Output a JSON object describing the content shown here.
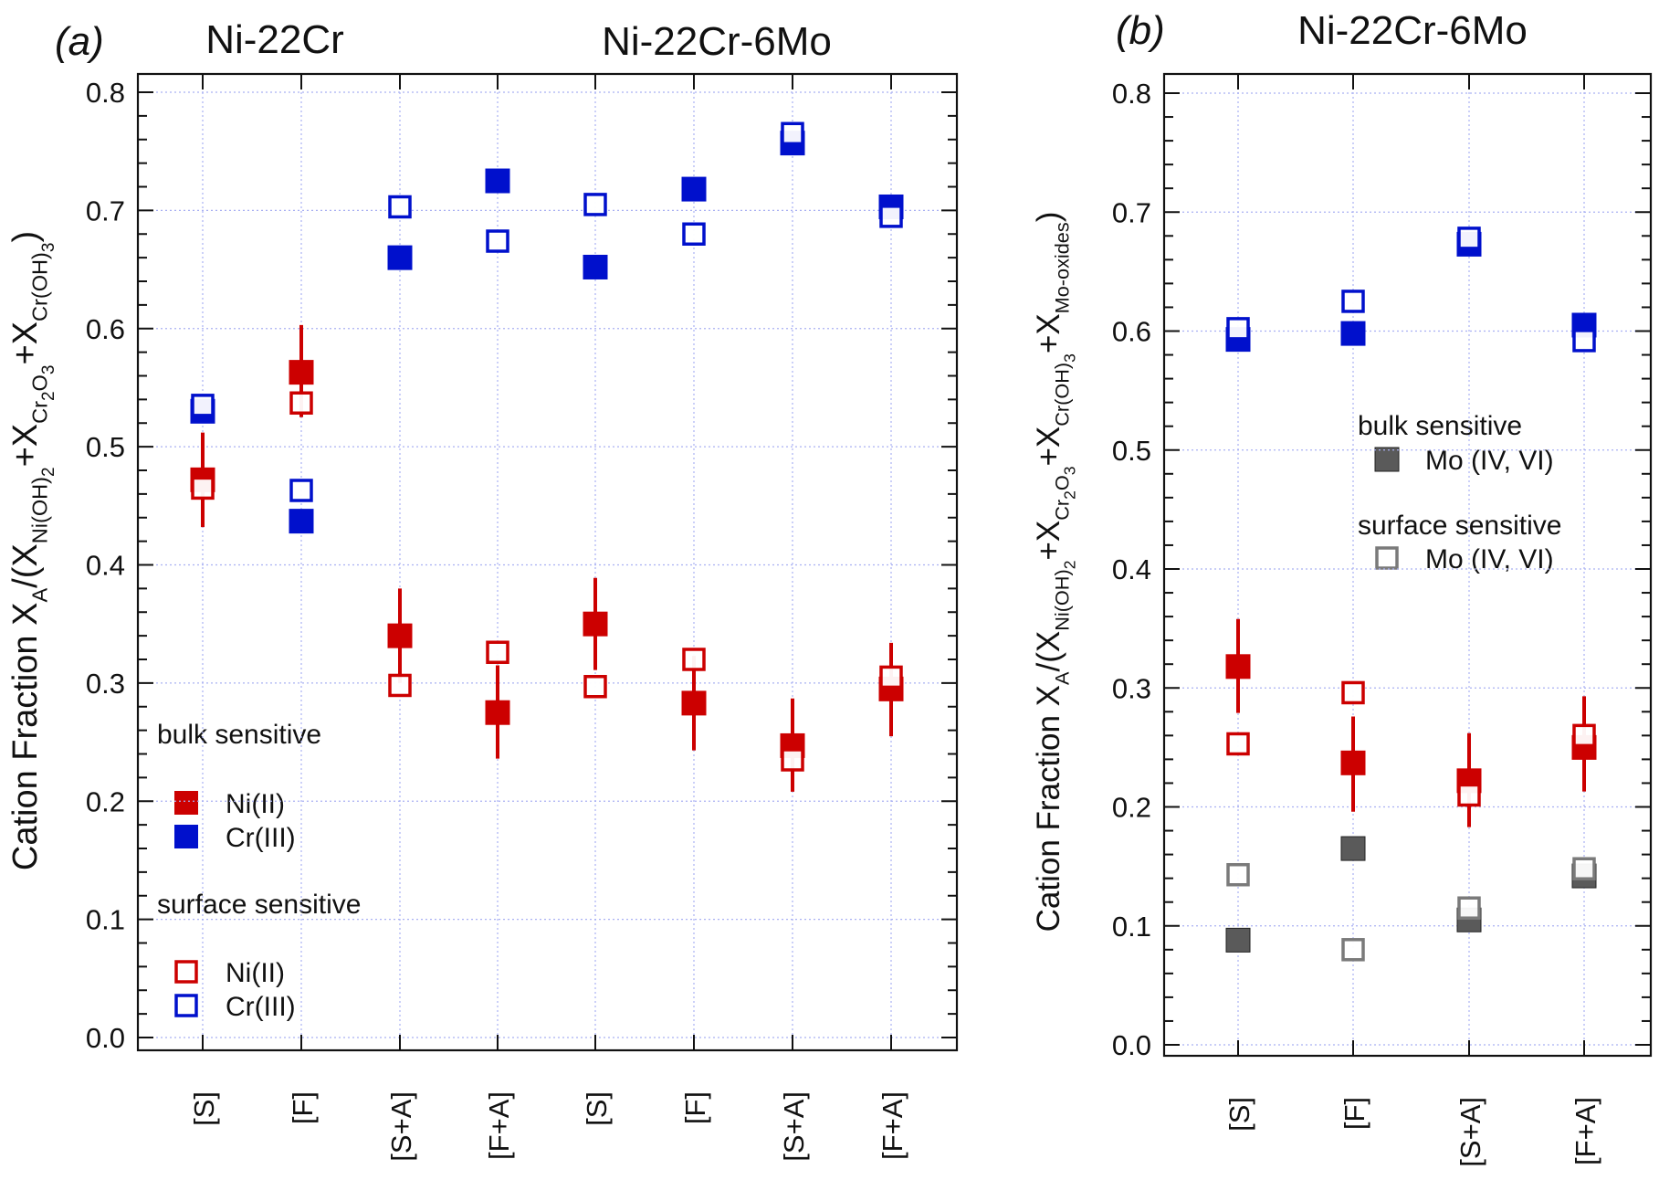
{
  "colors": {
    "ni": "#cc0000",
    "cr": "#0010cc",
    "mo_bulk": "#5a5a5a",
    "mo_surface": "#7a7a7a",
    "grid": "#a9b0f2"
  },
  "chart_data": [
    {
      "panel_label": "(a)",
      "type": "scatter",
      "group_labels": [
        "Ni-22Cr",
        "Ni-22Cr-6Mo"
      ],
      "ylabel_segments": [
        {
          "t": "Cation Fraction X",
          "lvl": 0
        },
        {
          "t": "A",
          "lvl": 1
        },
        {
          "t": "/(X",
          "lvl": 0
        },
        {
          "t": "Ni(OH)",
          "lvl": 1
        },
        {
          "t": "2",
          "lvl": 2
        },
        {
          "t": "+X",
          "lvl": 0
        },
        {
          "t": "Cr",
          "lvl": 1
        },
        {
          "t": "2",
          "lvl": 2
        },
        {
          "t": "O",
          "lvl": 1
        },
        {
          "t": "3",
          "lvl": 2
        },
        {
          "t": "+X",
          "lvl": 0
        },
        {
          "t": "Cr(OH)",
          "lvl": 1
        },
        {
          "t": "3",
          "lvl": 2
        },
        {
          "t": ")",
          "lvl": 0
        }
      ],
      "categories": [
        "[S]",
        "[F]",
        "[S+A]",
        "[F+A]",
        "[S]",
        "[F]",
        "[S+A]",
        "[F+A]"
      ],
      "ylim": [
        0,
        0.8
      ],
      "yticks": [
        "0.0",
        "0.1",
        "0.2",
        "0.3",
        "0.4",
        "0.5",
        "0.6",
        "0.7",
        "0.8"
      ],
      "grid": true,
      "series": [
        {
          "name": "Cr(III)",
          "group": "bulk sensitive",
          "color": "cr",
          "filled": true,
          "values": [
            0.53,
            0.437,
            0.66,
            0.725,
            0.652,
            0.718,
            0.757,
            0.703
          ]
        },
        {
          "name": "Cr(III)",
          "group": "surface sensitive",
          "color": "cr",
          "filled": false,
          "values": [
            0.535,
            0.463,
            0.703,
            0.674,
            0.705,
            0.68,
            0.765,
            0.695
          ]
        },
        {
          "name": "Ni(II)",
          "group": "bulk sensitive",
          "color": "ni",
          "filled": true,
          "values": [
            0.472,
            0.563,
            0.34,
            0.275,
            0.35,
            0.283,
            0.247,
            0.295
          ],
          "err_low": [
            0.432,
            0.525,
            0.3,
            0.236,
            0.311,
            0.243,
            0.208,
            0.255
          ],
          "err_high": [
            0.512,
            0.603,
            0.38,
            0.315,
            0.389,
            0.323,
            0.287,
            0.334
          ]
        },
        {
          "name": "Ni(II)",
          "group": "surface sensitive",
          "color": "ni",
          "filled": false,
          "values": [
            0.465,
            0.537,
            0.298,
            0.326,
            0.297,
            0.32,
            0.235,
            0.305
          ]
        }
      ],
      "legend": {
        "placement": "bottom-left",
        "bulk_title": "bulk sensitive",
        "surface_title": "surface sensitive",
        "bulk_items": [
          "Ni(II)",
          "Cr(III)"
        ],
        "surface_items": [
          "Ni(II)",
          "Cr(III)"
        ]
      }
    },
    {
      "panel_label": "(b)",
      "type": "scatter",
      "group_labels": [
        "Ni-22Cr-6Mo"
      ],
      "ylabel_segments": [
        {
          "t": "Cation Fraction X",
          "lvl": 0
        },
        {
          "t": "A",
          "lvl": 1
        },
        {
          "t": "/(X",
          "lvl": 0
        },
        {
          "t": "Ni(OH)",
          "lvl": 1
        },
        {
          "t": "2",
          "lvl": 2
        },
        {
          "t": "+X",
          "lvl": 0
        },
        {
          "t": "Cr",
          "lvl": 1
        },
        {
          "t": "2",
          "lvl": 2
        },
        {
          "t": "O",
          "lvl": 1
        },
        {
          "t": "3",
          "lvl": 2
        },
        {
          "t": "+X",
          "lvl": 0
        },
        {
          "t": "Cr(OH)",
          "lvl": 1
        },
        {
          "t": "3",
          "lvl": 2
        },
        {
          "t": "+X",
          "lvl": 0
        },
        {
          "t": "Mo-oxides",
          "lvl": 1
        },
        {
          "t": ")",
          "lvl": 0
        }
      ],
      "categories": [
        "[S]",
        "[F]",
        "[S+A]",
        "[F+A]"
      ],
      "ylim": [
        0,
        0.8
      ],
      "yticks": [
        "0.0",
        "0.1",
        "0.2",
        "0.3",
        "0.4",
        "0.5",
        "0.6",
        "0.7",
        "0.8"
      ],
      "grid": true,
      "series": [
        {
          "name": "Cr(III)",
          "group": "bulk sensitive",
          "color": "cr",
          "filled": true,
          "values": [
            0.593,
            0.598,
            0.673,
            0.605
          ]
        },
        {
          "name": "Cr(III)",
          "group": "surface sensitive",
          "color": "cr",
          "filled": false,
          "values": [
            0.602,
            0.625,
            0.678,
            0.592
          ]
        },
        {
          "name": "Ni(II)",
          "group": "bulk sensitive",
          "color": "ni",
          "filled": true,
          "values": [
            0.318,
            0.237,
            0.222,
            0.25
          ],
          "err_low": [
            0.279,
            0.196,
            0.183,
            0.213
          ],
          "err_high": [
            0.358,
            0.276,
            0.262,
            0.293
          ]
        },
        {
          "name": "Ni(II)",
          "group": "surface sensitive",
          "color": "ni",
          "filled": false,
          "values": [
            0.253,
            0.296,
            0.21,
            0.26
          ]
        },
        {
          "name": "Mo (IV, VI)",
          "group": "bulk sensitive",
          "color": "mo_bulk",
          "filled": true,
          "values": [
            0.088,
            0.165,
            0.105,
            0.142
          ]
        },
        {
          "name": "Mo (IV, VI)",
          "group": "surface sensitive",
          "color": "mo_surface",
          "filled": false,
          "values": [
            0.143,
            0.08,
            0.115,
            0.148
          ]
        }
      ],
      "legend": {
        "placement": "center-right",
        "bulk_title": "bulk sensitive",
        "surface_title": "surface sensitive",
        "bulk_items": [
          "Mo (IV, VI)"
        ],
        "surface_items": [
          "Mo (IV, VI)"
        ]
      }
    }
  ]
}
